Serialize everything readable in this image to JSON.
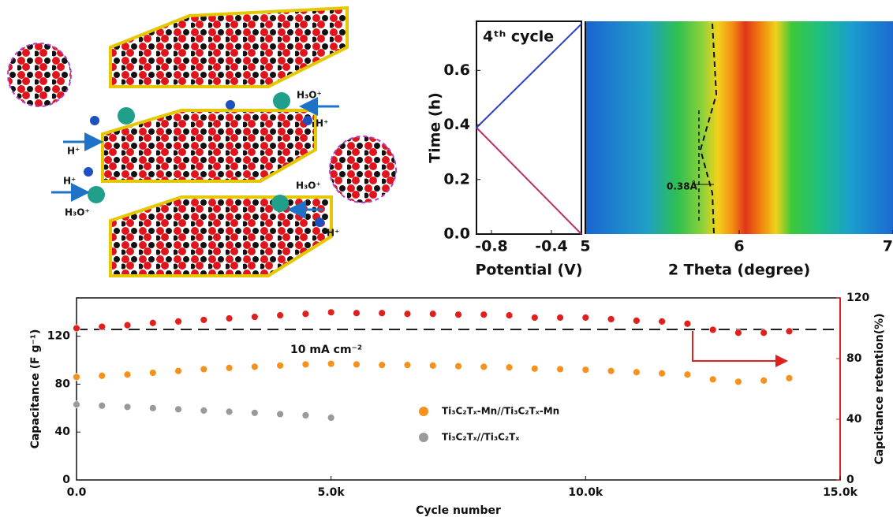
{
  "illustration": {
    "labels": [
      "H₃O⁺",
      "H⁺",
      "H⁺",
      "H⁺",
      "H₃O⁺",
      "H₃O⁺",
      "H⁺"
    ]
  },
  "chart_data": [
    {
      "type": "line",
      "annotation": "4ᵗʰ cycle",
      "xlabel": "Potential (V)",
      "ylabel": "Time (h)",
      "xlim": [
        -0.9,
        -0.2
      ],
      "xticks": [
        -0.8,
        -0.4
      ],
      "ylim": [
        0,
        0.78
      ],
      "yticks": [
        {
          "value": 0,
          "label": "0.0"
        },
        0.2,
        0.4,
        0.6
      ],
      "series": [
        {
          "color": "#b8306e",
          "x": [
            -0.2,
            -0.9
          ],
          "values": [
            0,
            0.39
          ]
        },
        {
          "color": "#2a3fc4",
          "x": [
            -0.9,
            -0.2
          ],
          "values": [
            0.39,
            0.77
          ]
        }
      ]
    },
    {
      "type": "heatmap",
      "xlabel": "2 Theta (degree)",
      "annotation": "0.38Å",
      "xlim": [
        5,
        7
      ],
      "xticks": [
        5,
        6,
        7
      ]
    },
    {
      "type": "scatter",
      "xlabel": "Cycle number",
      "ylabel": "Capacitance (F g⁻¹)",
      "y2label": "Capcitance retention(%)",
      "annotation": "10 mA cm⁻²",
      "xlim": [
        0,
        15000
      ],
      "xticks": [
        {
          "value": 0,
          "label": "0.0"
        },
        {
          "value": 5000,
          "label": "5.0k"
        },
        {
          "value": 10000,
          "label": "10.0k"
        },
        {
          "value": 15000,
          "label": "15.0k"
        }
      ],
      "ylim": [
        0,
        152
      ],
      "yticks": [
        0,
        40,
        80,
        120
      ],
      "y2lim": [
        0,
        120
      ],
      "y2ticks": [
        0,
        40,
        80,
        120
      ],
      "series": [
        {
          "axis": "y2",
          "color": "#e0201c",
          "x": [
            0,
            500,
            1000,
            1500,
            2000,
            2500,
            3000,
            3500,
            4000,
            4500,
            5000,
            5500,
            6000,
            6500,
            7000,
            7500,
            8000,
            8500,
            9000,
            9500,
            10000,
            10500,
            11000,
            11500,
            12000,
            12500,
            13000,
            13500,
            14000
          ],
          "values": [
            100,
            101,
            102,
            103.5,
            104.5,
            105.5,
            106.5,
            107.5,
            108.5,
            109.5,
            110.5,
            110,
            110,
            109.5,
            109.5,
            109,
            109,
            108.5,
            107,
            107,
            107,
            106,
            105,
            104.5,
            103,
            99,
            97,
            97,
            98
          ]
        },
        {
          "name": "Ti₃C₂Tₓ-Mn//Ti₃C₂Tₓ-Mn",
          "color": "#f5921e",
          "x": [
            0,
            500,
            1000,
            1500,
            2000,
            2500,
            3000,
            3500,
            4000,
            4500,
            5000,
            5500,
            6000,
            6500,
            7000,
            7500,
            8000,
            8500,
            9000,
            9500,
            10000,
            10500,
            11000,
            11500,
            12000,
            12500,
            13000,
            13500,
            14000
          ],
          "values": [
            86,
            87,
            88,
            89.5,
            91,
            92.5,
            93.5,
            94.5,
            95.5,
            96.5,
            97,
            96.5,
            96,
            96,
            95.5,
            95,
            94.5,
            94,
            93,
            92.5,
            92,
            91,
            90,
            89,
            88,
            84,
            82,
            83,
            85
          ]
        },
        {
          "name": "Ti₃C₂Tₓ//Ti₃C₂Tₓ",
          "color": "#9a9a9a",
          "x": [
            0,
            500,
            1000,
            1500,
            2000,
            2500,
            3000,
            3500,
            4000,
            4500,
            5000
          ],
          "values": [
            63,
            62,
            61,
            60,
            59,
            58,
            57,
            56,
            55,
            54,
            52
          ]
        }
      ]
    }
  ]
}
